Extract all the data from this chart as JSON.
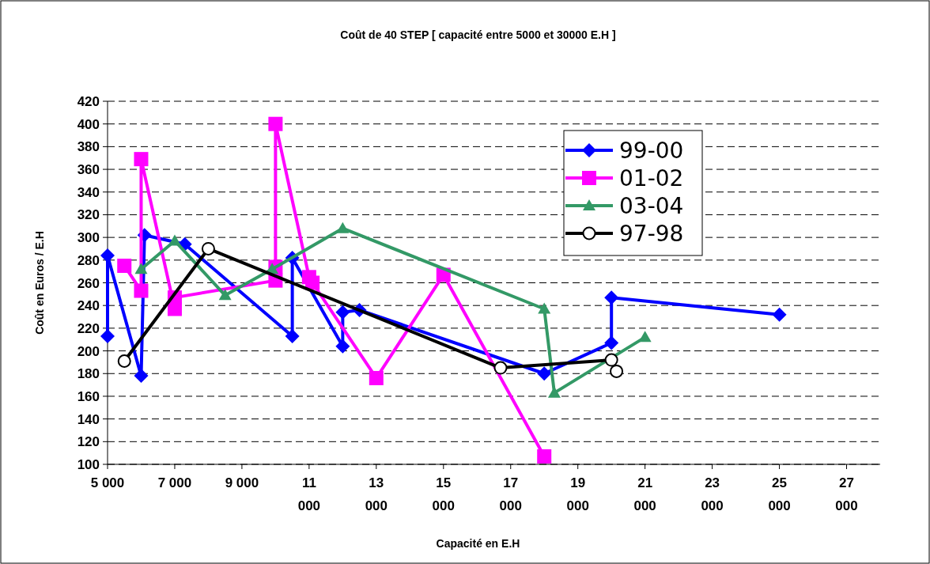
{
  "chart_data": {
    "type": "line",
    "title": "Coût de 40 STEP [ capacité entre 5000 et 30000 E.H ]",
    "xlabel": "Capacité en E.H",
    "ylabel": "Coût en Euros / E.H",
    "xlim": [
      5000,
      28000
    ],
    "xticks": [
      {
        "value": 5000,
        "label": "5 000"
      },
      {
        "value": 7000,
        "label": "7 000"
      },
      {
        "value": 9000,
        "label": "9 000"
      },
      {
        "value": 11000,
        "label": "11 000"
      },
      {
        "value": 13000,
        "label": "13 000"
      },
      {
        "value": 15000,
        "label": "15 000"
      },
      {
        "value": 17000,
        "label": "17 000"
      },
      {
        "value": 19000,
        "label": "19 000"
      },
      {
        "value": 21000,
        "label": "21 000"
      },
      {
        "value": 23000,
        "label": "23 000"
      },
      {
        "value": 25000,
        "label": "25 000"
      },
      {
        "value": 27000,
        "label": "27 000"
      }
    ],
    "ylim": [
      100,
      420
    ],
    "yticks": [
      100,
      120,
      140,
      160,
      180,
      200,
      220,
      240,
      260,
      280,
      300,
      320,
      340,
      360,
      380,
      400,
      420
    ],
    "grid": "y",
    "legend": "top right",
    "line_style": "solid",
    "series": [
      {
        "name": "99-00",
        "color": "#0000ff",
        "marker": "diamond",
        "x": [
          5000,
          5000,
          6000,
          6100,
          7300,
          10500,
          10500,
          12000,
          12000,
          12500,
          18000,
          20000,
          20000,
          25000
        ],
        "values": [
          213,
          284,
          178,
          302,
          294,
          213,
          282,
          204,
          234,
          236,
          180,
          207,
          247,
          232
        ]
      },
      {
        "name": "01-02",
        "color": "#ff00ff",
        "marker": "square",
        "x": [
          5500,
          6000,
          6000,
          7000,
          7000,
          10000,
          10000,
          10000,
          11000,
          11100,
          13000,
          15000,
          18000
        ],
        "values": [
          275,
          253,
          369,
          237,
          247,
          262,
          274,
          400,
          265,
          260,
          176,
          267,
          107
        ]
      },
      {
        "name": "03-04",
        "color": "#339966",
        "marker": "triangle",
        "x": [
          6000,
          7000,
          8500,
          9900,
          12000,
          18000,
          18300,
          21000
        ],
        "values": [
          272,
          297,
          249,
          272,
          308,
          237,
          163,
          212
        ]
      },
      {
        "name": "97-98",
        "color": "#000000",
        "marker": "circle",
        "x": [
          5500,
          8000,
          16700,
          20000,
          20150
        ],
        "values": [
          191,
          290,
          185,
          192,
          182
        ]
      }
    ]
  }
}
